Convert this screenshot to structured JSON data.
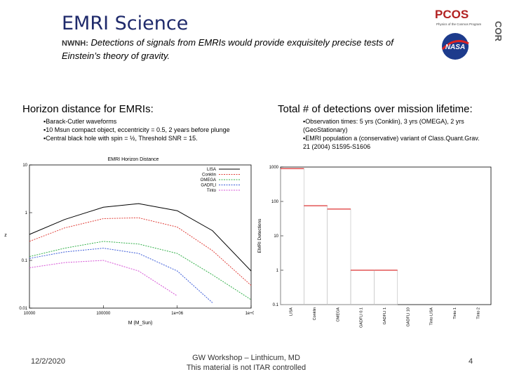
{
  "slide": {
    "title": "EMRI Science",
    "subtitle_lead": "NWNH:",
    "subtitle_body": "Detections of signals from EMRIs would provide exquisitely precise tests of Einstein’s theory of gravity.",
    "logo": {
      "name": "PCOS",
      "caption": "Physics of the Cosmos Program",
      "agency": "NASA",
      "side": "COR"
    }
  },
  "left": {
    "heading": "Horizon distance for EMRIs:",
    "bullets": [
      "Barack-Cutler waveforms",
      "10 Msun compact object, eccentricity = 0.5, 2 years before plunge",
      "Central black hole with spin = ½, Threshold SNR = 15."
    ]
  },
  "right": {
    "heading": "Total # of detections over mission lifetime:",
    "bullets": [
      "Observation times: 5 yrs (Conklin), 3 yrs (OMEGA), 2 yrs (GeoStationary)",
      "EMRI population a (conservative) variant of Class.Quant.Grav. 21 (2004) S1595-S1606"
    ]
  },
  "footer": {
    "date": "12/2/2020",
    "line1": "GW Workshop – Linthicum, MD",
    "line2": "This material is not ITAR controlled",
    "page": "4"
  },
  "chart_data": [
    {
      "type": "line",
      "title": "EMRI Horizon Distance",
      "xlabel": "M (M_Sun)",
      "ylabel": "z",
      "xscale": "log",
      "yscale": "log",
      "xlim": [
        10000,
        10000000
      ],
      "ylim": [
        0.01,
        10
      ],
      "xticks": [
        "10000",
        "100000",
        "1e+06",
        "1e+07"
      ],
      "yticks": [
        "0.01",
        "0.1",
        "1",
        "10"
      ],
      "legend_position": "top-right",
      "series": [
        {
          "name": "LISA",
          "color": "#000000",
          "x": [
            10000,
            30000,
            100000,
            300000,
            1000000,
            3000000,
            10000000
          ],
          "values": [
            0.35,
            0.72,
            1.3,
            1.55,
            1.1,
            0.42,
            0.06
          ]
        },
        {
          "name": "Conklin",
          "color": "#e0403a",
          "x": [
            10000,
            30000,
            100000,
            300000,
            1000000,
            3000000,
            10000000
          ],
          "values": [
            0.25,
            0.48,
            0.75,
            0.78,
            0.5,
            0.16,
            0.03
          ]
        },
        {
          "name": "OMEGA",
          "color": "#33b04a",
          "x": [
            10000,
            30000,
            100000,
            300000,
            1000000,
            3000000,
            10000000
          ],
          "values": [
            0.12,
            0.18,
            0.25,
            0.22,
            0.14,
            0.05,
            0.015
          ]
        },
        {
          "name": "GADFLI",
          "color": "#3b5bd9",
          "x": [
            10000,
            30000,
            100000,
            300000,
            1000000,
            3000000
          ],
          "values": [
            0.11,
            0.15,
            0.18,
            0.14,
            0.06,
            0.013
          ]
        },
        {
          "name": "Tinto",
          "color": "#d653d6",
          "x": [
            10000,
            30000,
            100000,
            300000,
            1000000
          ],
          "values": [
            0.07,
            0.09,
            0.1,
            0.06,
            0.018
          ]
        }
      ]
    },
    {
      "type": "bar",
      "title": "",
      "xlabel": "",
      "ylabel": "EMRI Detections",
      "yscale": "log",
      "ylim": [
        0.1,
        1000
      ],
      "yticks": [
        "0.1",
        "1",
        "10",
        "100",
        "1000"
      ],
      "categories": [
        "LISA",
        "Conklin",
        "OMEGA",
        "GADFLI 0.1",
        "GADFLI 1",
        "GADFLI 10",
        "Tinto LISA",
        "Tinto 1",
        "Tinto 2"
      ],
      "values": [
        900,
        75,
        60,
        1,
        1,
        null,
        null,
        null,
        null
      ]
    }
  ]
}
